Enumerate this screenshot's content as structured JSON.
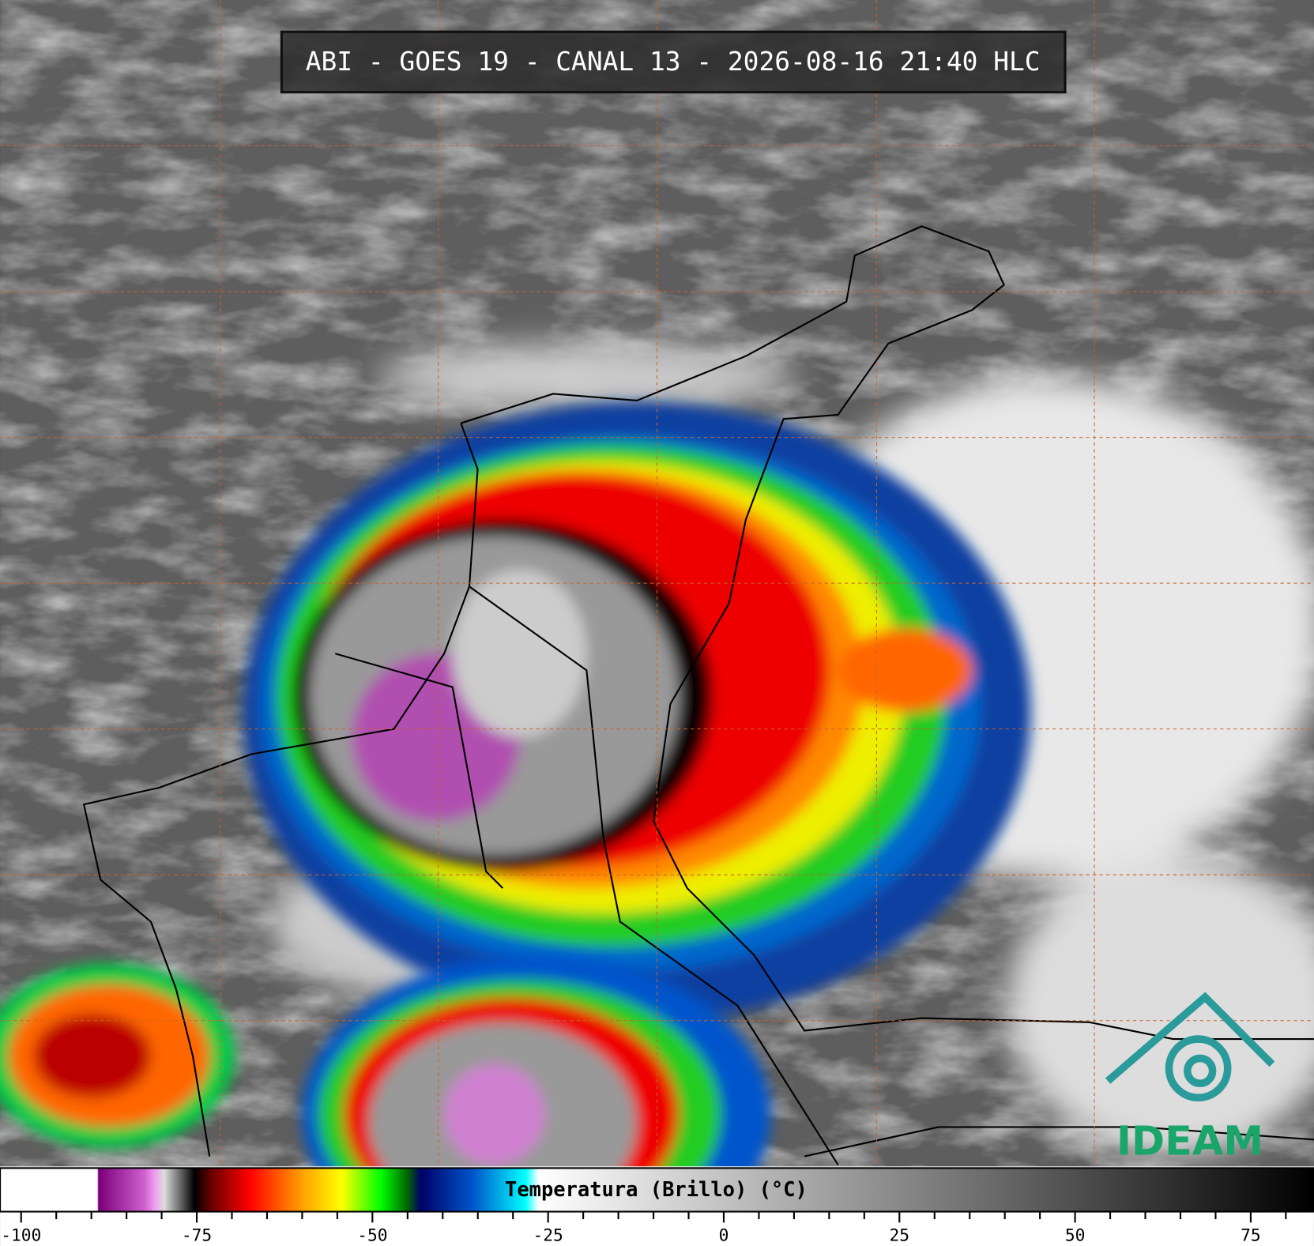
{
  "header": {
    "title": "ABI - GOES 19 - CANAL 13 - 2026-08-16 21:40 HLC"
  },
  "colorbar": {
    "label": "Temperatura (Brillo) (°C)",
    "range": [
      -103,
      84
    ],
    "ticks": [
      -100,
      -75,
      -50,
      -25,
      0,
      25,
      50,
      75
    ],
    "minor_ticks": [
      -95,
      -90,
      -85,
      -80,
      -70,
      -65,
      -60,
      -55,
      -45,
      -40,
      -35,
      -30,
      -20,
      -15,
      -10,
      -5,
      5,
      10,
      15,
      20,
      30,
      35,
      40,
      45,
      55,
      60,
      65,
      70,
      80
    ]
  },
  "logo": {
    "text": "IDEAM"
  }
}
